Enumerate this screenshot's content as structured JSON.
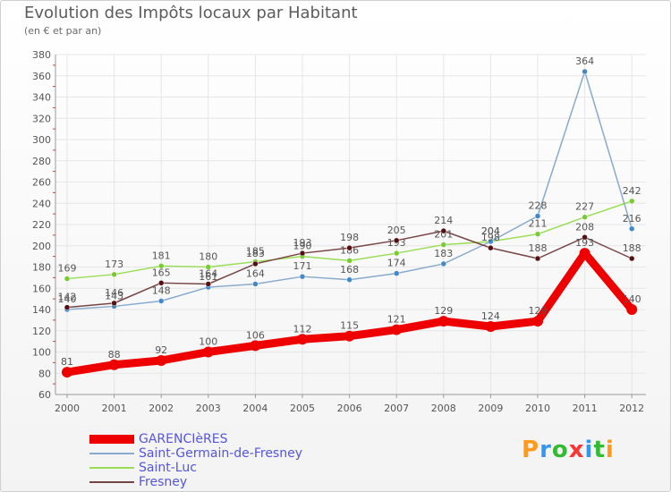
{
  "title": "Evolution des Impôts locaux par Habitant",
  "subtitle": "(en € et par an)",
  "logo": {
    "text": "Proxiti",
    "colors": [
      "#ff9a1a",
      "#3399ee",
      "#33bb33",
      "#ff3333",
      "#3399ee",
      "#33bb33",
      "#ff9a1a"
    ]
  },
  "chart_data": {
    "type": "line",
    "categories": [
      "2000",
      "2001",
      "2002",
      "2003",
      "2004",
      "2005",
      "2006",
      "2007",
      "2008",
      "2009",
      "2010",
      "2011",
      "2012"
    ],
    "ylim": [
      60,
      380
    ],
    "yticks": [
      60,
      80,
      100,
      120,
      140,
      160,
      180,
      200,
      220,
      240,
      260,
      280,
      300,
      320,
      340,
      360,
      380
    ],
    "grid": true,
    "series": [
      {
        "name": "Saint-Luc",
        "color": "#99dd55",
        "marker": "#77cc33",
        "width": 1.5,
        "values": [
          169,
          173,
          181,
          180,
          185,
          190,
          186,
          193,
          201,
          204,
          211,
          227,
          242
        ]
      },
      {
        "name": "Saint-Germain-de-Fresney",
        "color": "#88aacc",
        "marker": "#4488cc",
        "width": 1.5,
        "values": [
          140,
          143,
          148,
          161,
          164,
          171,
          168,
          174,
          183,
          204,
          228,
          364,
          216
        ]
      },
      {
        "name": "Fresney",
        "color": "#774444",
        "marker": "#551111",
        "width": 1.5,
        "values": [
          142,
          146,
          165,
          164,
          183,
          193,
          198,
          205,
          214,
          198,
          188,
          208,
          188
        ]
      },
      {
        "name": "GARENCIèRES",
        "color": "#ee0000",
        "marker": "#ee0000",
        "width": 9,
        "values": [
          81,
          88,
          92,
          100,
          106,
          112,
          115,
          121,
          129,
          124,
          129,
          193,
          140
        ]
      }
    ],
    "legend_order": [
      "GARENCIèRES",
      "Saint-Germain-de-Fresney",
      "Saint-Luc",
      "Fresney"
    ]
  }
}
